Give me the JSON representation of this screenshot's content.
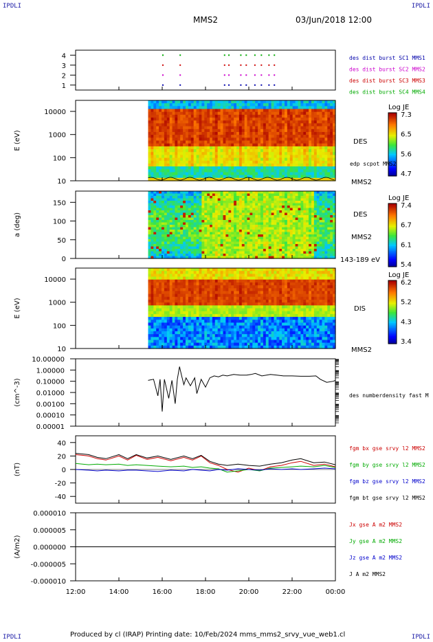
{
  "header": {
    "corner_label": "IPDLI",
    "mission": "MMS2",
    "datetime": "03/Jun/2018 12:00"
  },
  "footer": {
    "text": "Produced by cl (IRAP)   Printing date: 10/Feb/2024   mms_mms2_srvy_vue_web1.cl"
  },
  "colors": {
    "red": "#cc0000",
    "green": "#00aa00",
    "blue": "#0000cc",
    "magenta": "#cc00cc",
    "navy": "#0000aa",
    "black": "#000000"
  },
  "chart_data": [
    {
      "type": "scatter",
      "id": "burst",
      "ylim": [
        0.5,
        4.5
      ],
      "yticks": [
        "1",
        "2",
        "3",
        "4"
      ],
      "legend": [
        {
          "label": "des dist burst SC1 MMS1",
          "color": "#0000aa"
        },
        {
          "label": "des dist burst SC2 MMS2",
          "color": "#cc00cc"
        },
        {
          "label": "des dist burst SC3 MMS3",
          "color": "#cc0000"
        },
        {
          "label": "des dist burst SC4 MMS4",
          "color": "#00aa00"
        }
      ],
      "burst_times_h": [
        16.0,
        16.8,
        18.85,
        19.05,
        19.6,
        19.85,
        20.25,
        20.55,
        20.9,
        21.15
      ]
    },
    {
      "type": "heatmap",
      "id": "des_energy",
      "ylabel": "E (eV)",
      "yscale": "log",
      "ylim": [
        10,
        30000
      ],
      "yticks": [
        "10",
        "100",
        "1000",
        "10000"
      ],
      "colorbar": {
        "title": "Log JE",
        "ticks": [
          "7.3",
          "6.5",
          "5.6",
          "4.7"
        ],
        "range": [
          4.7,
          7.3
        ]
      },
      "side_labels": [
        "DES",
        "edp scpot MMS2",
        "MMS2"
      ],
      "data_start_h": 15.35
    },
    {
      "type": "heatmap",
      "id": "des_pitch",
      "ylabel": "a (deg)",
      "ylim": [
        0,
        180
      ],
      "yticks": [
        "0",
        "50",
        "100",
        "150"
      ],
      "colorbar": {
        "title": "Log JE",
        "ticks": [
          "7.4",
          "6.7",
          "6.1",
          "5.4"
        ],
        "range": [
          5.4,
          7.4
        ]
      },
      "side_labels": [
        "DES",
        "MMS2",
        "143-189 eV"
      ],
      "data_start_h": 15.35
    },
    {
      "type": "heatmap",
      "id": "dis_energy",
      "ylabel": "E (eV)",
      "yscale": "log",
      "ylim": [
        10,
        30000
      ],
      "yticks": [
        "10",
        "100",
        "1000",
        "10000"
      ],
      "colorbar": {
        "title": "Log JE",
        "ticks": [
          "6.2",
          "5.2",
          "4.3",
          "3.4"
        ],
        "range": [
          3.4,
          6.2
        ]
      },
      "side_labels": [
        "DIS",
        "MMS2"
      ],
      "data_start_h": 15.35
    },
    {
      "type": "line",
      "id": "density",
      "ylabel": "(cm^-3)",
      "yscale": "log",
      "ylim": [
        1e-05,
        10
      ],
      "yticks": [
        "10.00000",
        "1.00000",
        "0.10000",
        "0.01000",
        "0.00100",
        "0.00010",
        "0.00001"
      ],
      "series": [
        {
          "name": "des numberdensity fast M",
          "color": "#000000",
          "x": [
            15.35,
            15.6,
            15.8,
            15.9,
            16.0,
            16.1,
            16.3,
            16.45,
            16.6,
            16.7,
            16.8,
            16.9,
            17.0,
            17.1,
            17.3,
            17.5,
            17.6,
            17.8,
            18.0,
            18.2,
            18.4,
            18.6,
            18.8,
            19.0,
            19.3,
            19.6,
            19.9,
            20.1,
            20.3,
            20.6,
            21.0,
            21.3,
            21.6,
            22.0,
            22.4,
            22.8,
            23.1,
            23.3,
            23.6,
            23.9,
            24.0
          ],
          "y": [
            0.12,
            0.15,
            0.005,
            0.15,
            0.0002,
            0.15,
            0.003,
            0.12,
            0.001,
            0.15,
            2.0,
            0.3,
            0.05,
            0.2,
            0.04,
            0.2,
            0.008,
            0.15,
            0.03,
            0.2,
            0.3,
            0.25,
            0.35,
            0.3,
            0.4,
            0.35,
            0.35,
            0.4,
            0.5,
            0.3,
            0.4,
            0.35,
            0.3,
            0.3,
            0.28,
            0.28,
            0.3,
            0.15,
            0.08,
            0.1,
            0.12
          ]
        }
      ]
    },
    {
      "type": "line",
      "id": "bfield",
      "ylabel": "(nT)",
      "ylim": [
        -50,
        50
      ],
      "yticks": [
        "40",
        "20",
        "0",
        "-20",
        "-40"
      ],
      "series": [
        {
          "name": "fgm bx gse srvy l2 MMS2",
          "color": "#cc0000",
          "x": [
            12.0,
            12.6,
            13.0,
            13.4,
            14.0,
            14.4,
            14.8,
            15.3,
            15.8,
            16.4,
            17.0,
            17.4,
            17.8,
            18.2,
            18.6,
            19.0,
            19.5,
            20.0,
            20.5,
            21.0,
            21.5,
            22.0,
            22.4,
            23.0,
            23.5,
            24.0
          ],
          "y": [
            22,
            20,
            16,
            14,
            20,
            14,
            21,
            15,
            18,
            13,
            18,
            14,
            20,
            10,
            6,
            0,
            -4,
            2,
            -2,
            4,
            6,
            10,
            12,
            6,
            8,
            4
          ]
        },
        {
          "name": "fgm by gse srvy l2 MMS2",
          "color": "#00aa00",
          "x": [
            12.0,
            12.6,
            13.0,
            13.4,
            14.0,
            14.4,
            14.8,
            15.3,
            15.8,
            16.4,
            17.0,
            17.4,
            17.8,
            18.2,
            18.6,
            19.0,
            19.5,
            20.0,
            20.5,
            21.0,
            21.5,
            22.0,
            22.4,
            23.0,
            23.5,
            24.0
          ],
          "y": [
            9,
            7,
            8,
            7,
            8,
            6,
            7,
            6,
            5,
            4,
            5,
            3,
            4,
            2,
            1,
            -4,
            -2,
            0,
            -2,
            2,
            3,
            4,
            5,
            4,
            6,
            3
          ]
        },
        {
          "name": "fgm bz gse srvy l2 MMS2",
          "color": "#0000cc",
          "x": [
            12.0,
            12.6,
            13.0,
            13.4,
            14.0,
            14.4,
            14.8,
            15.3,
            15.8,
            16.4,
            17.0,
            17.4,
            17.8,
            18.2,
            18.6,
            19.0,
            19.5,
            20.0,
            20.5,
            21.0,
            21.5,
            22.0,
            22.4,
            23.0,
            23.5,
            24.0
          ],
          "y": [
            0,
            -1,
            -2,
            -1,
            -2,
            -1,
            -1,
            -2,
            -3,
            -1,
            -2,
            0,
            -1,
            -2,
            0,
            -1,
            1,
            0,
            -1,
            1,
            0,
            1,
            0,
            1,
            2,
            1
          ]
        },
        {
          "name": "fgm bt gse srvy l2 MMS2",
          "color": "#000000",
          "x": [
            12.0,
            12.6,
            13.0,
            13.4,
            14.0,
            14.4,
            14.8,
            15.3,
            15.8,
            16.4,
            17.0,
            17.4,
            17.8,
            18.2,
            18.6,
            19.0,
            19.5,
            20.0,
            20.5,
            21.0,
            21.5,
            22.0,
            22.4,
            23.0,
            23.5,
            24.0
          ],
          "y": [
            24,
            22,
            18,
            16,
            22,
            16,
            22,
            17,
            20,
            15,
            20,
            16,
            21,
            12,
            8,
            6,
            8,
            6,
            5,
            8,
            10,
            14,
            16,
            10,
            11,
            7
          ]
        }
      ]
    },
    {
      "type": "line",
      "id": "current",
      "ylabel": "(A/m2)",
      "ylim": [
        -1e-05,
        1e-05
      ],
      "yticks": [
        "0.000010",
        "0.000005",
        "0.000000",
        "-0.000005",
        "-0.000010"
      ],
      "xlabel": "",
      "xticks": [
        "12:00",
        "14:00",
        "16:00",
        "18:00",
        "20:00",
        "22:00",
        "00:00"
      ],
      "xlim_h": [
        12,
        24
      ],
      "series": [
        {
          "name": "Jx gse A m2 MMS2",
          "color": "#cc0000"
        },
        {
          "name": "Jy gse A m2 MMS2",
          "color": "#00aa00"
        },
        {
          "name": "Jz gse A m2 MMS2",
          "color": "#0000cc"
        },
        {
          "name": "J A m2 MMS2",
          "color": "#000000"
        }
      ]
    }
  ]
}
